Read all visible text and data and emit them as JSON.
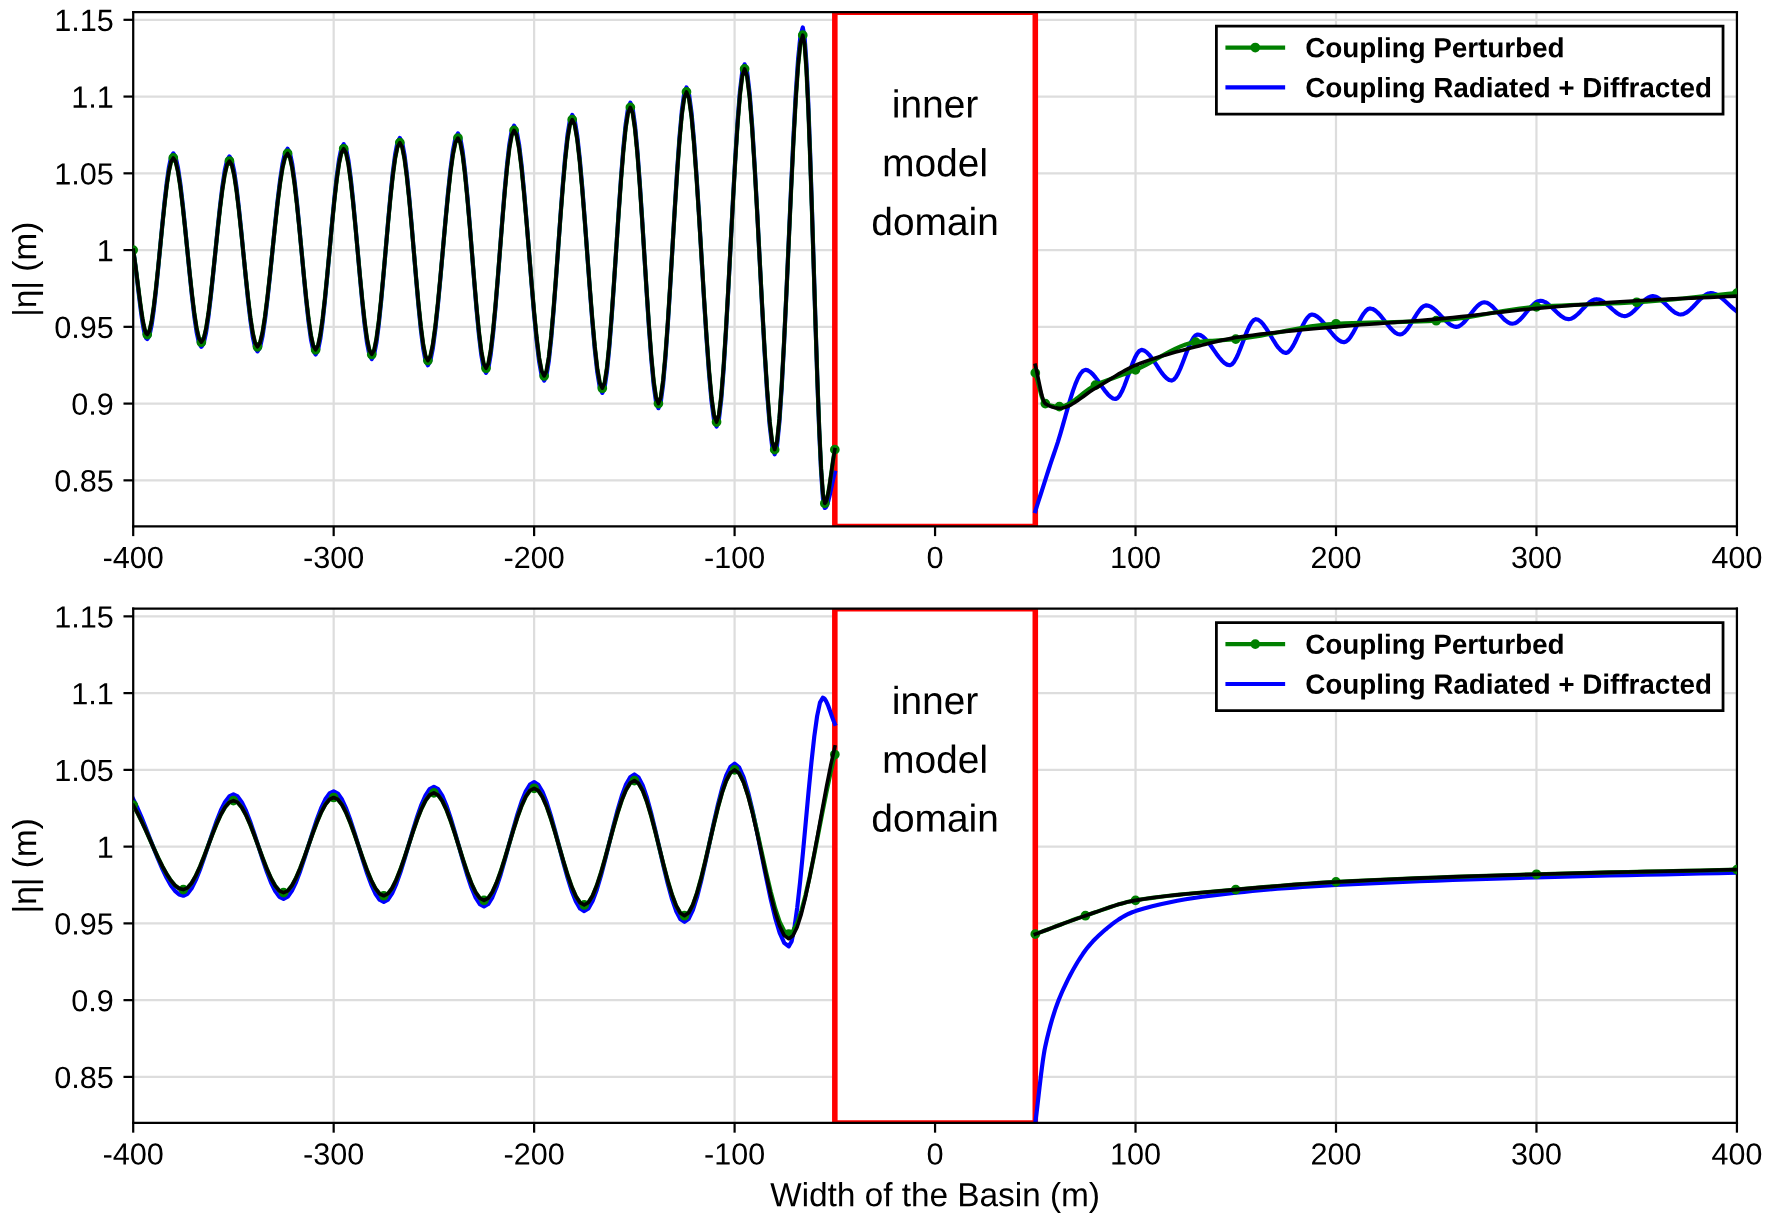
{
  "chart_data": [
    {
      "type": "line",
      "ylabel": "|η| (m)",
      "xlim": [
        -400,
        400
      ],
      "xticks": [
        -400,
        -300,
        -200,
        -100,
        0,
        100,
        200,
        300,
        400
      ],
      "ylim": [
        0.82,
        1.155
      ],
      "yticks": [
        0.85,
        0.9,
        0.95,
        1,
        1.05,
        1.1,
        1.15
      ],
      "grid": true,
      "legend": "top right",
      "bands": [
        {
          "axis": "x",
          "from": -50,
          "to": 50,
          "label": "inner model domain",
          "color": "#ff0000"
        }
      ],
      "series": [
        {
          "name": "Coupling Perturbed",
          "color": "#008000",
          "marker": "circle",
          "x": [
            -400,
            -393,
            -380,
            -366,
            -352,
            -338,
            -323,
            -309,
            -295,
            -281,
            -267,
            -253,
            -238,
            -224,
            -210,
            -195,
            -181,
            -166,
            -152,
            -138,
            -124,
            -109,
            -95,
            -80,
            -66,
            -55,
            -50,
            0,
            50,
            55,
            62,
            80,
            100,
            130,
            150,
            200,
            250,
            300,
            350,
            400
          ],
          "values": [
            1.0,
            0.945,
            1.06,
            0.94,
            1.058,
            0.937,
            1.063,
            0.935,
            1.066,
            0.932,
            1.07,
            0.928,
            1.073,
            0.923,
            1.078,
            0.918,
            1.085,
            0.91,
            1.093,
            0.9,
            1.103,
            0.888,
            1.118,
            0.87,
            1.14,
            0.835,
            0.87,
            null,
            0.92,
            0.9,
            0.898,
            0.912,
            0.922,
            0.94,
            0.942,
            0.952,
            0.954,
            0.963,
            0.966,
            0.972
          ]
        },
        {
          "name": "Coupling Radiated + Diffracted",
          "color": "#0000ff",
          "x": [
            -400,
            -393,
            -380,
            -366,
            -352,
            -338,
            -323,
            -309,
            -295,
            -281,
            -267,
            -253,
            -238,
            -224,
            -210,
            -195,
            -181,
            -166,
            -152,
            -138,
            -124,
            -109,
            -95,
            -80,
            -66,
            -55,
            -50,
            0,
            50,
            60,
            75,
            90,
            103,
            118,
            131,
            147,
            160,
            175,
            188,
            204,
            217,
            232,
            245,
            260,
            274,
            288,
            302,
            316,
            330,
            344,
            358,
            372,
            387,
            400
          ],
          "values": [
            1.0,
            0.942,
            1.063,
            0.937,
            1.061,
            0.934,
            1.066,
            0.932,
            1.069,
            0.929,
            1.073,
            0.925,
            1.076,
            0.92,
            1.081,
            0.915,
            1.088,
            0.907,
            1.096,
            0.897,
            1.106,
            0.885,
            1.121,
            0.867,
            1.145,
            0.832,
            0.855,
            null,
            0.83,
            0.87,
            0.922,
            0.903,
            0.935,
            0.915,
            0.945,
            0.925,
            0.955,
            0.933,
            0.958,
            0.94,
            0.962,
            0.945,
            0.964,
            0.95,
            0.966,
            0.952,
            0.967,
            0.955,
            0.968,
            0.957,
            0.97,
            0.958,
            0.972,
            0.96
          ]
        },
        {
          "color": "#000000",
          "x": [
            -400,
            -393,
            -380,
            -366,
            -352,
            -338,
            -323,
            -309,
            -295,
            -281,
            -267,
            -253,
            -238,
            -224,
            -210,
            -195,
            -181,
            -166,
            -152,
            -138,
            -124,
            -109,
            -95,
            -80,
            -66,
            -55,
            -50,
            0,
            50,
            55,
            62,
            80,
            100,
            130,
            150,
            200,
            250,
            300,
            350,
            400
          ],
          "values": [
            1.0,
            0.945,
            1.06,
            0.94,
            1.058,
            0.937,
            1.063,
            0.935,
            1.066,
            0.932,
            1.07,
            0.928,
            1.073,
            0.923,
            1.078,
            0.918,
            1.085,
            0.91,
            1.093,
            0.9,
            1.103,
            0.888,
            1.118,
            0.87,
            1.14,
            0.835,
            0.87,
            null,
            0.925,
            0.9,
            0.897,
            0.91,
            0.925,
            0.937,
            0.943,
            0.95,
            0.955,
            0.962,
            0.967,
            0.97
          ]
        }
      ]
    },
    {
      "type": "line",
      "xlabel": "Width of the Basin (m)",
      "ylabel": "|η| (m)",
      "xlim": [
        -400,
        400
      ],
      "xticks": [
        -400,
        -300,
        -200,
        -100,
        0,
        100,
        200,
        300,
        400
      ],
      "ylim": [
        0.82,
        1.155
      ],
      "yticks": [
        0.85,
        0.9,
        0.95,
        1,
        1.05,
        1.1,
        1.15
      ],
      "grid": true,
      "legend": "top right",
      "bands": [
        {
          "axis": "x",
          "from": -50,
          "to": 50,
          "label": "inner model domain",
          "color": "#ff0000"
        }
      ],
      "series": [
        {
          "name": "Coupling Perturbed",
          "color": "#008000",
          "marker": "circle",
          "x": [
            -400,
            -375,
            -350,
            -325,
            -300,
            -275,
            -250,
            -225,
            -200,
            -175,
            -150,
            -125,
            -100,
            -73,
            -50,
            0,
            50,
            75,
            100,
            150,
            200,
            300,
            400
          ],
          "values": [
            1.027,
            0.972,
            1.03,
            0.97,
            1.032,
            0.968,
            1.035,
            0.965,
            1.038,
            0.962,
            1.043,
            0.955,
            1.05,
            0.943,
            1.06,
            null,
            0.943,
            0.955,
            0.965,
            0.972,
            0.977,
            0.982,
            0.985
          ]
        },
        {
          "name": "Coupling Radiated + Diffracted",
          "color": "#0000ff",
          "x": [
            -400,
            -375,
            -350,
            -325,
            -300,
            -275,
            -250,
            -225,
            -200,
            -175,
            -150,
            -125,
            -100,
            -73,
            -56,
            -50,
            0,
            50,
            55,
            65,
            80,
            100,
            150,
            200,
            300,
            400
          ],
          "values": [
            1.031,
            0.968,
            1.034,
            0.966,
            1.036,
            0.964,
            1.039,
            0.961,
            1.042,
            0.958,
            1.047,
            0.951,
            1.054,
            0.935,
            1.097,
            1.08,
            null,
            0.82,
            0.87,
            0.91,
            0.94,
            0.958,
            0.97,
            0.975,
            0.98,
            0.983
          ]
        },
        {
          "color": "#000000",
          "x": [
            -400,
            -375,
            -350,
            -325,
            -300,
            -275,
            -250,
            -225,
            -200,
            -175,
            -150,
            -125,
            -100,
            -73,
            -50,
            0,
            50,
            75,
            100,
            150,
            200,
            300,
            400
          ],
          "values": [
            1.027,
            0.972,
            1.03,
            0.97,
            1.032,
            0.968,
            1.035,
            0.965,
            1.038,
            0.962,
            1.043,
            0.955,
            1.05,
            0.94,
            1.065,
            null,
            0.943,
            0.955,
            0.965,
            0.972,
            0.977,
            0.982,
            0.985
          ]
        }
      ]
    }
  ]
}
